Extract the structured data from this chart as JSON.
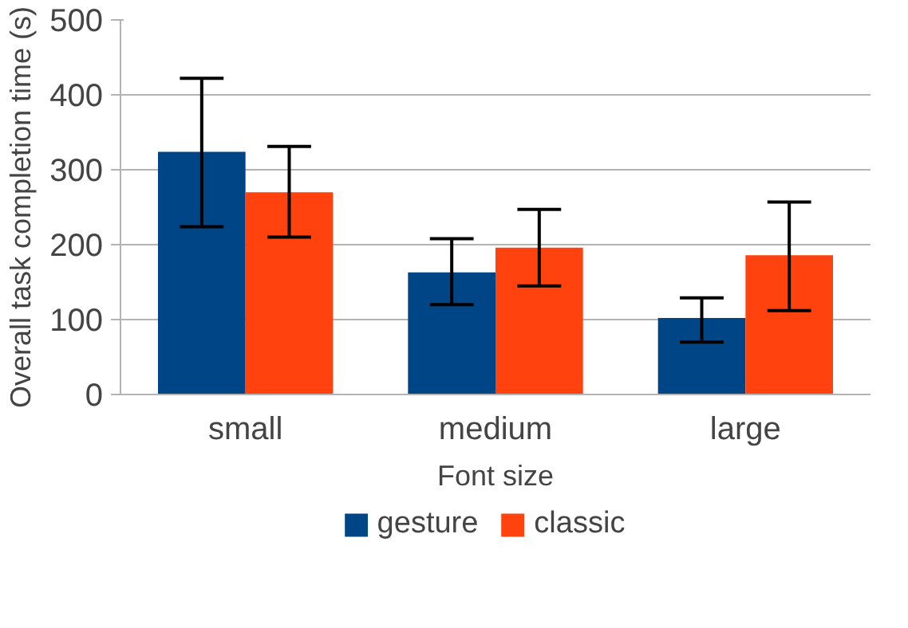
{
  "chart_data": {
    "type": "bar",
    "xlabel": "Font size",
    "ylabel": "Overall task completion time (s)",
    "categories": [
      "small",
      "medium",
      "large"
    ],
    "series": [
      {
        "name": "gesture",
        "color": "#004586",
        "values": [
          324,
          163,
          102
        ],
        "errors": [
          [
            224,
            422
          ],
          [
            120,
            208
          ],
          [
            70,
            129
          ]
        ]
      },
      {
        "name": "classic",
        "color": "#ff420e",
        "values": [
          270,
          196,
          186
        ],
        "errors": [
          [
            210,
            331
          ],
          [
            145,
            247
          ],
          [
            112,
            257
          ]
        ]
      }
    ],
    "ylim": [
      0,
      500
    ],
    "yticks": [
      0,
      100,
      200,
      300,
      400,
      500
    ],
    "grid": "y",
    "legend": "bottom"
  }
}
